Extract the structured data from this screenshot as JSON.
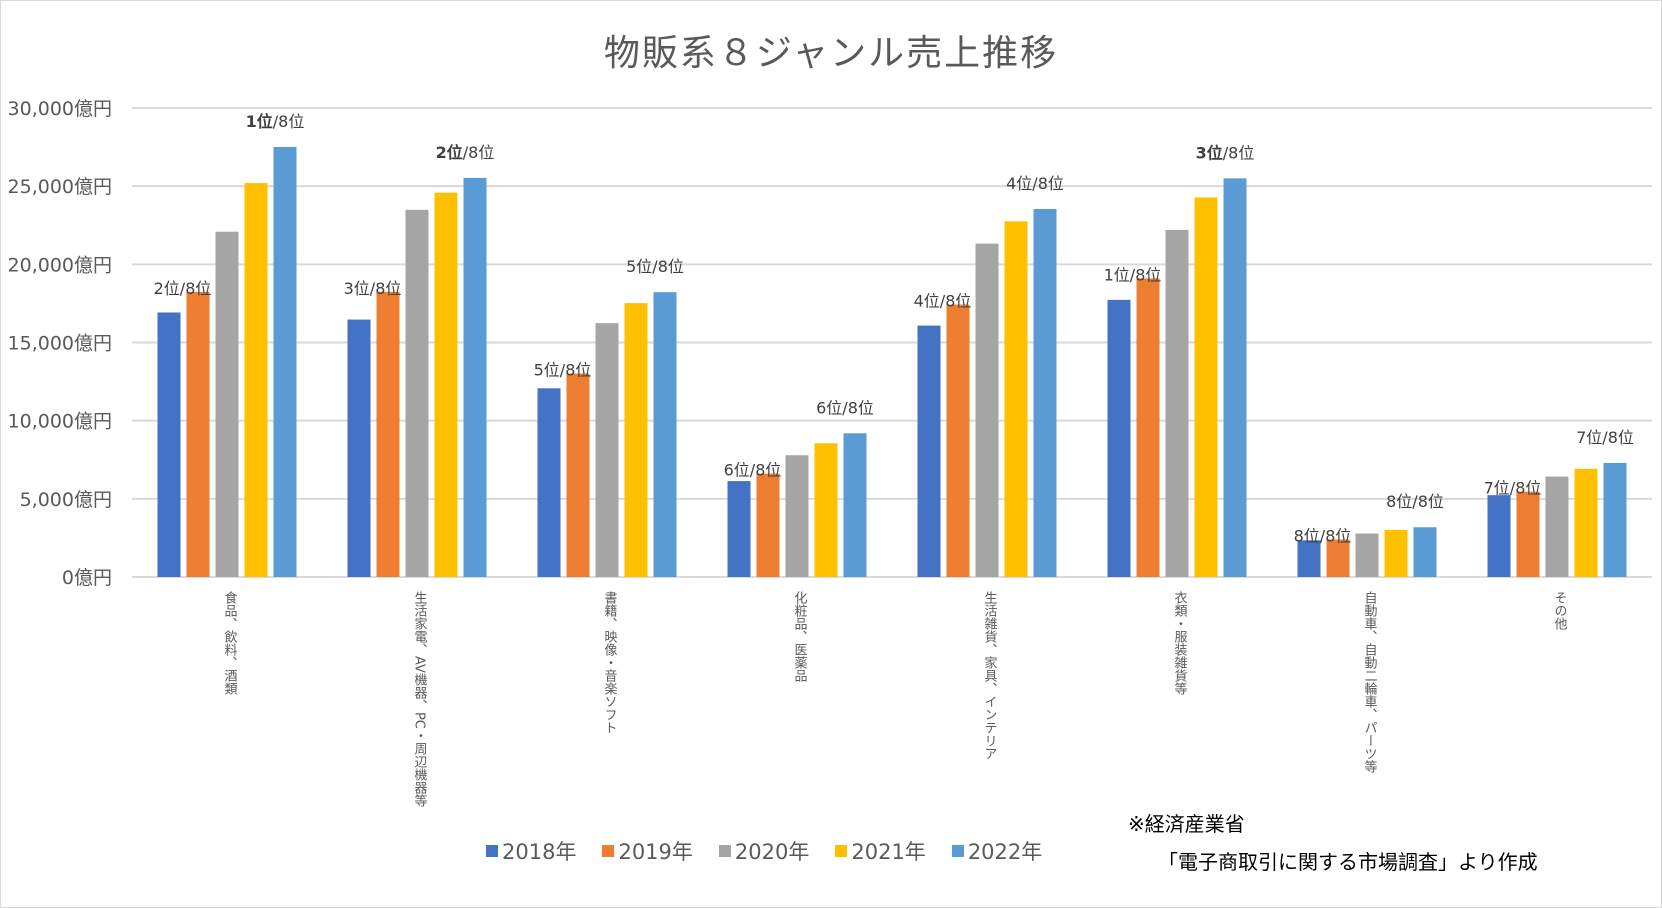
{
  "chart_data": {
    "type": "bar",
    "title": "物販系８ジャンル売上推移",
    "xlabel": "",
    "ylabel": "",
    "ylim": [
      0,
      30000
    ],
    "y_unit_suffix": "億円",
    "y_ticks": [
      "0億円",
      "5,000億円",
      "10,000億円",
      "15,000億円",
      "20,000億円",
      "25,000億円",
      "30,000億円"
    ],
    "grid": true,
    "legend_position": "bottom",
    "categories": [
      "食品、飲料、酒類",
      "生活家電、AV機器、PC・周辺機器等",
      "書籍、映像・音楽ソフト",
      "化粧品、医薬品",
      "生活雑貨、家具、インテリア",
      "衣類・服装雑貨等",
      "自動車、自動二輪車、パーツ等",
      "その他"
    ],
    "series": [
      {
        "name": "2018年",
        "color": "#4472c4",
        "values": [
          16919,
          16467,
          12070,
          6136,
          16083,
          17728,
          2348,
          5236
        ]
      },
      {
        "name": "2019年",
        "color": "#ed7d31",
        "values": [
          18233,
          18239,
          13015,
          6611,
          17428,
          19100,
          2396,
          5456
        ]
      },
      {
        "name": "2020年",
        "color": "#a5a5a5",
        "values": [
          22086,
          23489,
          16238,
          7787,
          21322,
          22203,
          2784,
          6423
        ]
      },
      {
        "name": "2021年",
        "color": "#ffc000",
        "values": [
          25199,
          24584,
          17518,
          8552,
          22752,
          24279,
          3016,
          6920
        ]
      },
      {
        "name": "2022年",
        "color": "#5b9bd5",
        "values": [
          27505,
          25528,
          18222,
          9191,
          23541,
          25499,
          3183,
          7297
        ]
      }
    ],
    "annotations": {
      "rank_2018": [
        {
          "rank": "2位",
          "total": "/8位",
          "bold": false
        },
        {
          "rank": "3位",
          "total": "/8位",
          "bold": false
        },
        {
          "rank": "5位",
          "total": "/8位",
          "bold": false
        },
        {
          "rank": "6位",
          "total": "/8位",
          "bold": false
        },
        {
          "rank": "4位",
          "total": "/8位",
          "bold": false
        },
        {
          "rank": "1位",
          "total": "/8位",
          "bold": false
        },
        {
          "rank": "8位",
          "total": "/8位",
          "bold": false
        },
        {
          "rank": "7位",
          "total": "/8位",
          "bold": false
        }
      ],
      "rank_2022": [
        {
          "rank": "1位",
          "total": "/8位",
          "bold": true
        },
        {
          "rank": "2位",
          "total": "/8位",
          "bold": true
        },
        {
          "rank": "5位",
          "total": "/8位",
          "bold": false
        },
        {
          "rank": "6位",
          "total": "/8位",
          "bold": false
        },
        {
          "rank": "4位",
          "total": "/8位",
          "bold": false
        },
        {
          "rank": "3位",
          "total": "/8位",
          "bold": true
        },
        {
          "rank": "8位",
          "total": "/8位",
          "bold": false
        },
        {
          "rank": "7位",
          "total": "/8位",
          "bold": false
        }
      ]
    }
  },
  "footnote": {
    "line1": "※経済産業省",
    "line2": "「電子商取引に関する市場調査」より作成"
  }
}
